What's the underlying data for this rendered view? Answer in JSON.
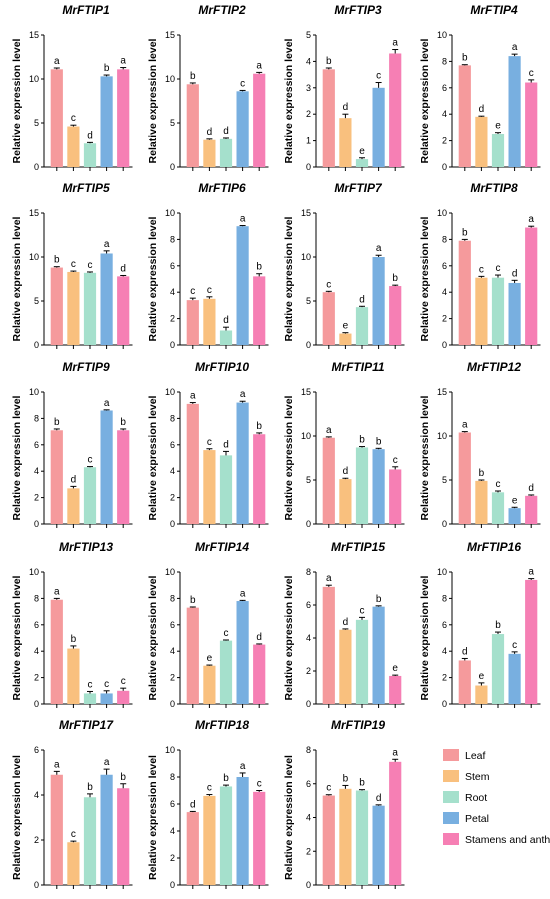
{
  "colors": {
    "Leaf": "#f59a9c",
    "Stem": "#f9c07e",
    "Root": "#a5e0cc",
    "Petal": "#78afe0",
    "Stamens and anthers": "#f67fb4"
  },
  "legend": [
    "Leaf",
    "Stem",
    "Root",
    "Petal",
    "Stamens and anthers"
  ],
  "chart_data": [
    {
      "type": "bar",
      "title": "MrFTIP1",
      "ylabel": "Relative expression level",
      "ylim": [
        0,
        15
      ],
      "yticks": [
        0,
        5,
        10,
        15
      ],
      "categories": [
        "Leaf",
        "Stem",
        "Root",
        "Petal",
        "Stamens and anthers"
      ],
      "values": [
        11.1,
        4.6,
        2.7,
        10.3,
        11.1
      ],
      "errors": [
        0.15,
        0.15,
        0.1,
        0.15,
        0.2
      ],
      "letters": [
        "a",
        "c",
        "d",
        "b",
        "a"
      ]
    },
    {
      "type": "bar",
      "title": "MrFTIP2",
      "ylabel": "Relative expression level",
      "ylim": [
        0,
        15
      ],
      "yticks": [
        0,
        5,
        10,
        15
      ],
      "categories": [
        "Leaf",
        "Stem",
        "Root",
        "Petal",
        "Stamens and anthers"
      ],
      "values": [
        9.4,
        3.1,
        3.2,
        8.6,
        10.6
      ],
      "errors": [
        0.15,
        0.1,
        0.1,
        0.1,
        0.15
      ],
      "letters": [
        "b",
        "d",
        "d",
        "c",
        "a"
      ]
    },
    {
      "type": "bar",
      "title": "MrFTIP3",
      "ylabel": "Relative expression level",
      "ylim": [
        0,
        5
      ],
      "yticks": [
        0,
        1,
        2,
        3,
        4,
        5
      ],
      "categories": [
        "Leaf",
        "Stem",
        "Root",
        "Petal",
        "Stamens and anthers"
      ],
      "values": [
        3.7,
        1.85,
        0.3,
        3.0,
        4.3
      ],
      "errors": [
        0.05,
        0.15,
        0.05,
        0.2,
        0.15
      ],
      "letters": [
        "b",
        "d",
        "e",
        "c",
        "a"
      ]
    },
    {
      "type": "bar",
      "title": "MrFTIP4",
      "ylabel": "Relative expression level",
      "ylim": [
        0,
        10
      ],
      "yticks": [
        0,
        2,
        4,
        6,
        8,
        10
      ],
      "categories": [
        "Leaf",
        "Stem",
        "Root",
        "Petal",
        "Stamens and anthers"
      ],
      "values": [
        7.7,
        3.8,
        2.5,
        8.4,
        6.4
      ],
      "errors": [
        0.05,
        0.05,
        0.1,
        0.15,
        0.2
      ],
      "letters": [
        "b",
        "d",
        "e",
        "a",
        "c"
      ]
    },
    {
      "type": "bar",
      "title": "MrFTIP5",
      "ylabel": "Relative expression level",
      "ylim": [
        0,
        15
      ],
      "yticks": [
        0,
        5,
        10,
        15
      ],
      "categories": [
        "Leaf",
        "Stem",
        "Root",
        "Petal",
        "Stamens and anthers"
      ],
      "values": [
        8.8,
        8.3,
        8.2,
        10.4,
        7.8
      ],
      "errors": [
        0.1,
        0.1,
        0.1,
        0.3,
        0.1
      ],
      "letters": [
        "b",
        "c",
        "c",
        "a",
        "d"
      ]
    },
    {
      "type": "bar",
      "title": "MrFTIP6",
      "ylabel": "Relative expression level",
      "ylim": [
        0,
        10
      ],
      "yticks": [
        0,
        2,
        4,
        6,
        8,
        10
      ],
      "categories": [
        "Leaf",
        "Stem",
        "Root",
        "Petal",
        "Stamens and anthers"
      ],
      "values": [
        3.4,
        3.5,
        1.1,
        9.0,
        5.2
      ],
      "errors": [
        0.15,
        0.15,
        0.25,
        0.05,
        0.2
      ],
      "letters": [
        "c",
        "c",
        "d",
        "a",
        "b"
      ]
    },
    {
      "type": "bar",
      "title": "MrFTIP7",
      "ylabel": "Relative expression level",
      "ylim": [
        0,
        15
      ],
      "yticks": [
        0,
        5,
        10,
        15
      ],
      "categories": [
        "Leaf",
        "Stem",
        "Root",
        "Petal",
        "Stamens and anthers"
      ],
      "values": [
        6.0,
        1.3,
        4.3,
        10.0,
        6.7
      ],
      "errors": [
        0.1,
        0.1,
        0.1,
        0.2,
        0.1
      ],
      "letters": [
        "c",
        "e",
        "d",
        "a",
        "b"
      ]
    },
    {
      "type": "bar",
      "title": "MrFTIP8",
      "ylabel": "Relative expression level",
      "ylim": [
        0,
        10
      ],
      "yticks": [
        0,
        2,
        4,
        6,
        8,
        10
      ],
      "categories": [
        "Leaf",
        "Stem",
        "Root",
        "Petal",
        "Stamens and anthers"
      ],
      "values": [
        7.9,
        5.1,
        5.1,
        4.7,
        8.9
      ],
      "errors": [
        0.1,
        0.1,
        0.2,
        0.2,
        0.1
      ],
      "letters": [
        "b",
        "c",
        "c",
        "d",
        "a"
      ]
    },
    {
      "type": "bar",
      "title": "MrFTIP9",
      "ylabel": "Relative expression level",
      "ylim": [
        0,
        10
      ],
      "yticks": [
        0,
        2,
        4,
        6,
        8,
        10
      ],
      "categories": [
        "Leaf",
        "Stem",
        "Root",
        "Petal",
        "Stamens and anthers"
      ],
      "values": [
        7.1,
        2.7,
        4.3,
        8.6,
        7.1
      ],
      "errors": [
        0.1,
        0.15,
        0.05,
        0.05,
        0.1
      ],
      "letters": [
        "b",
        "d",
        "c",
        "a",
        "b"
      ]
    },
    {
      "type": "bar",
      "title": "MrFTIP10",
      "ylabel": "Relative expression level",
      "ylim": [
        0,
        10
      ],
      "yticks": [
        0,
        2,
        4,
        6,
        8,
        10
      ],
      "categories": [
        "Leaf",
        "Stem",
        "Root",
        "Petal",
        "Stamens and anthers"
      ],
      "values": [
        9.1,
        5.6,
        5.2,
        9.2,
        6.8
      ],
      "errors": [
        0.1,
        0.1,
        0.3,
        0.1,
        0.1
      ],
      "letters": [
        "a",
        "c",
        "d",
        "a",
        "b"
      ]
    },
    {
      "type": "bar",
      "title": "MrFTIP11",
      "ylabel": "Relative expression level",
      "ylim": [
        0,
        15
      ],
      "yticks": [
        0,
        5,
        10,
        15
      ],
      "categories": [
        "Leaf",
        "Stem",
        "Root",
        "Petal",
        "Stamens and anthers"
      ],
      "values": [
        9.8,
        5.1,
        8.7,
        8.5,
        6.2
      ],
      "errors": [
        0.1,
        0.1,
        0.1,
        0.1,
        0.3
      ],
      "letters": [
        "a",
        "d",
        "b",
        "b",
        "c"
      ]
    },
    {
      "type": "bar",
      "title": "MrFTIP12",
      "ylabel": "Relative expression level",
      "ylim": [
        0,
        15
      ],
      "yticks": [
        0,
        5,
        10,
        15
      ],
      "categories": [
        "Leaf",
        "Stem",
        "Root",
        "Petal",
        "Stamens and anthers"
      ],
      "values": [
        10.4,
        4.9,
        3.6,
        1.8,
        3.2
      ],
      "errors": [
        0.1,
        0.1,
        0.15,
        0.1,
        0.1
      ],
      "letters": [
        "a",
        "b",
        "c",
        "e",
        "d"
      ]
    },
    {
      "type": "bar",
      "title": "MrFTIP13",
      "ylabel": "Relative expression level",
      "ylim": [
        0,
        10
      ],
      "yticks": [
        0,
        2,
        4,
        6,
        8,
        10
      ],
      "categories": [
        "Leaf",
        "Stem",
        "Root",
        "Petal",
        "Stamens and anthers"
      ],
      "values": [
        7.9,
        4.2,
        0.8,
        0.8,
        1.0
      ],
      "errors": [
        0.1,
        0.2,
        0.15,
        0.2,
        0.2
      ],
      "letters": [
        "a",
        "b",
        "c",
        "c",
        "c"
      ]
    },
    {
      "type": "bar",
      "title": "MrFTIP14",
      "ylabel": "Relative expression level",
      "ylim": [
        0,
        10
      ],
      "yticks": [
        0,
        2,
        4,
        6,
        8,
        10
      ],
      "categories": [
        "Leaf",
        "Stem",
        "Root",
        "Petal",
        "Stamens and anthers"
      ],
      "values": [
        7.3,
        2.9,
        4.8,
        7.8,
        4.5
      ],
      "errors": [
        0.05,
        0.05,
        0.05,
        0.05,
        0.05
      ],
      "letters": [
        "b",
        "e",
        "c",
        "a",
        "d"
      ]
    },
    {
      "type": "bar",
      "title": "MrFTIP15",
      "ylabel": "Relative expression level",
      "ylim": [
        0,
        8
      ],
      "yticks": [
        0,
        2,
        4,
        6,
        8
      ],
      "categories": [
        "Leaf",
        "Stem",
        "Root",
        "Petal",
        "Stamens and anthers"
      ],
      "values": [
        7.1,
        4.5,
        5.1,
        5.9,
        1.7
      ],
      "errors": [
        0.1,
        0.05,
        0.15,
        0.05,
        0.05
      ],
      "letters": [
        "a",
        "d",
        "c",
        "b",
        "e"
      ]
    },
    {
      "type": "bar",
      "title": "MrFTIP16",
      "ylabel": "Relative expression level",
      "ylim": [
        0,
        10
      ],
      "yticks": [
        0,
        2,
        4,
        6,
        8,
        10
      ],
      "categories": [
        "Leaf",
        "Stem",
        "Root",
        "Petal",
        "Stamens and anthers"
      ],
      "values": [
        3.3,
        1.4,
        5.3,
        3.8,
        9.4
      ],
      "errors": [
        0.15,
        0.2,
        0.15,
        0.15,
        0.1
      ],
      "letters": [
        "d",
        "e",
        "b",
        "c",
        "a"
      ]
    },
    {
      "type": "bar",
      "title": "MrFTIP17",
      "ylabel": "Relative expression level",
      "ylim": [
        0,
        6
      ],
      "yticks": [
        0,
        2,
        4,
        6
      ],
      "categories": [
        "Leaf",
        "Stem",
        "Root",
        "Petal",
        "Stamens and anthers"
      ],
      "values": [
        4.9,
        1.9,
        3.9,
        4.9,
        4.3
      ],
      "errors": [
        0.15,
        0.05,
        0.15,
        0.25,
        0.2
      ],
      "letters": [
        "a",
        "c",
        "b",
        "a",
        "b"
      ]
    },
    {
      "type": "bar",
      "title": "MrFTIP18",
      "ylabel": "Relative expression level",
      "ylim": [
        0,
        10
      ],
      "yticks": [
        0,
        2,
        4,
        6,
        8,
        10
      ],
      "categories": [
        "Leaf",
        "Stem",
        "Root",
        "Petal",
        "Stamens and anthers"
      ],
      "values": [
        5.4,
        6.6,
        7.3,
        8.0,
        6.9
      ],
      "errors": [
        0.05,
        0.1,
        0.1,
        0.3,
        0.1
      ],
      "letters": [
        "d",
        "c",
        "b",
        "a",
        "c"
      ]
    },
    {
      "type": "bar",
      "title": "MrFTIP19",
      "ylabel": "Relative expression level",
      "ylim": [
        0,
        8
      ],
      "yticks": [
        0,
        2,
        4,
        6,
        8
      ],
      "categories": [
        "Leaf",
        "Stem",
        "Root",
        "Petal",
        "Stamens and anthers"
      ],
      "values": [
        5.3,
        5.7,
        5.6,
        4.7,
        7.3
      ],
      "errors": [
        0.05,
        0.2,
        0.05,
        0.05,
        0.15
      ],
      "letters": [
        "c",
        "b",
        "b",
        "d",
        "a"
      ]
    }
  ]
}
